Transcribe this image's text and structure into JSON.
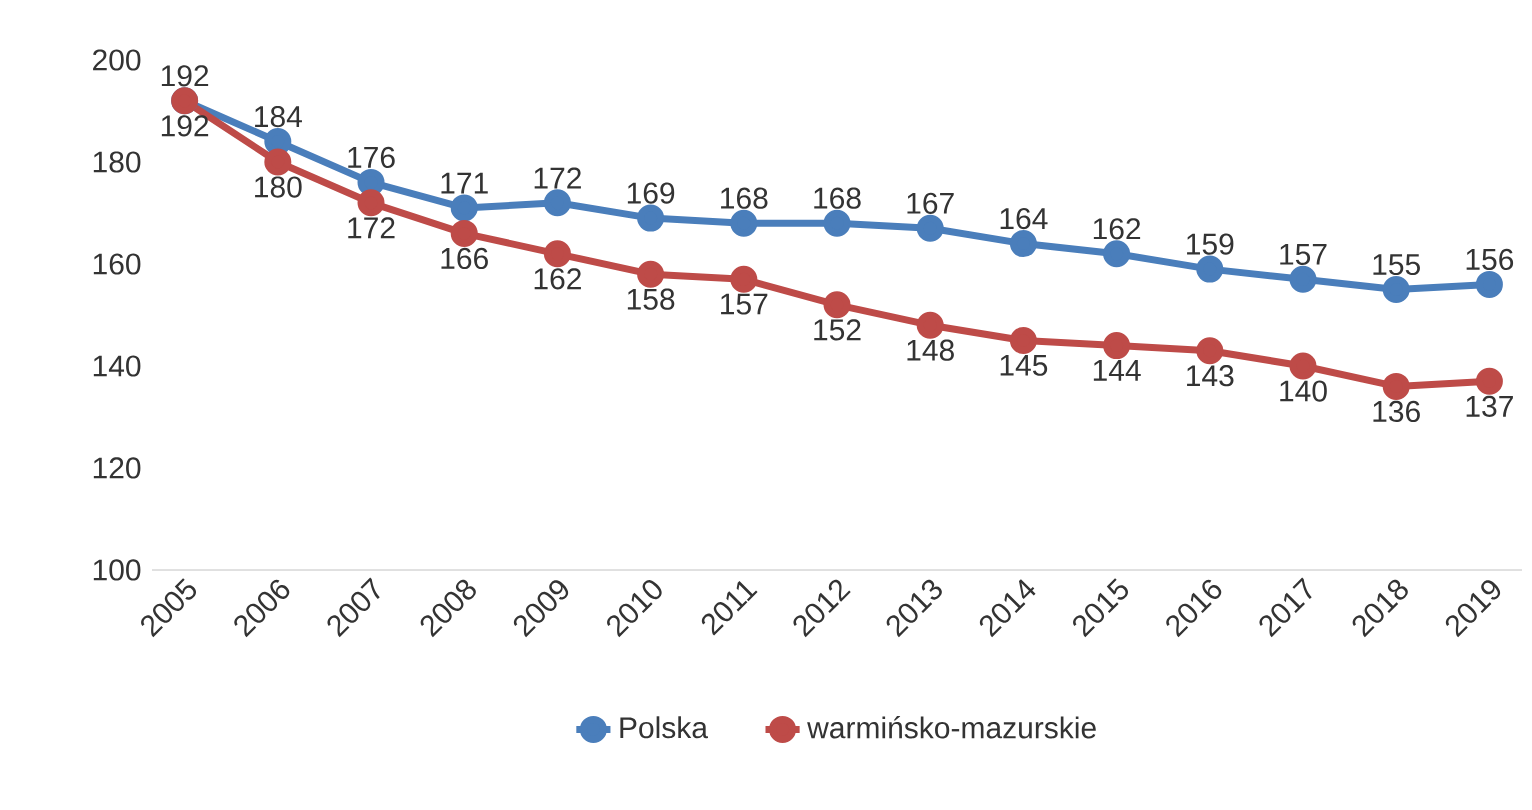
{
  "chart_data": {
    "type": "line",
    "categories": [
      "2005",
      "2006",
      "2007",
      "2008",
      "2009",
      "2010",
      "2011",
      "2012",
      "2013",
      "2014",
      "2015",
      "2016",
      "2017",
      "2018",
      "2019"
    ],
    "series": [
      {
        "name": "Polska",
        "color": "#4a7ebb",
        "values": [
          192,
          184,
          176,
          171,
          172,
          169,
          168,
          168,
          167,
          164,
          162,
          159,
          157,
          155,
          156
        ]
      },
      {
        "name": "warmińsko-mazurskie",
        "color": "#be4b48",
        "values": [
          192,
          180,
          172,
          166,
          162,
          158,
          157,
          152,
          148,
          145,
          144,
          143,
          140,
          136,
          137
        ]
      }
    ],
    "ylim": [
      100,
      200
    ],
    "yticks": [
      100,
      120,
      140,
      160,
      180,
      200
    ],
    "grid": false,
    "legend": "bottom",
    "marker": "circle",
    "line_style": "solid",
    "data_labels": true
  }
}
